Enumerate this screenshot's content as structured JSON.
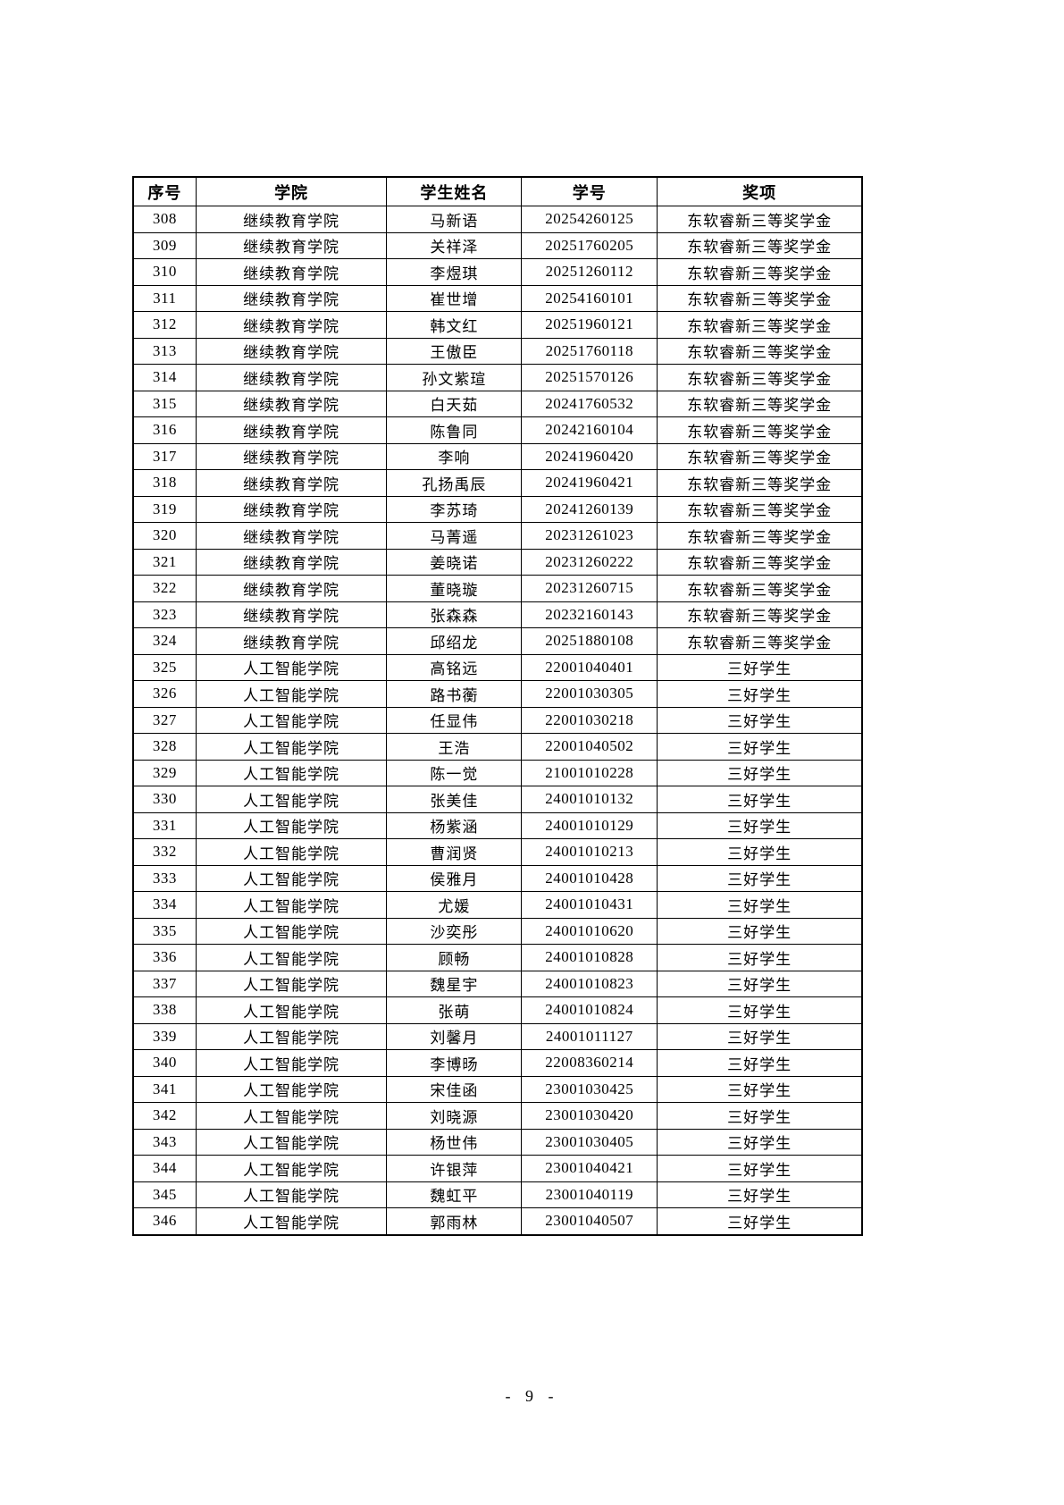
{
  "table": {
    "columns": [
      "序号",
      "学院",
      "学生姓名",
      "学号",
      "奖项"
    ],
    "rows": [
      {
        "no": "308",
        "college": "继续教育学院",
        "name": "马新语",
        "student_id": "20254260125",
        "award": "东软睿新三等奖学金"
      },
      {
        "no": "309",
        "college": "继续教育学院",
        "name": "关祥泽",
        "student_id": "20251760205",
        "award": "东软睿新三等奖学金"
      },
      {
        "no": "310",
        "college": "继续教育学院",
        "name": "李煜琪",
        "student_id": "20251260112",
        "award": "东软睿新三等奖学金"
      },
      {
        "no": "311",
        "college": "继续教育学院",
        "name": "崔世增",
        "student_id": "20254160101",
        "award": "东软睿新三等奖学金"
      },
      {
        "no": "312",
        "college": "继续教育学院",
        "name": "韩文红",
        "student_id": "20251960121",
        "award": "东软睿新三等奖学金"
      },
      {
        "no": "313",
        "college": "继续教育学院",
        "name": "王傲臣",
        "student_id": "20251760118",
        "award": "东软睿新三等奖学金"
      },
      {
        "no": "314",
        "college": "继续教育学院",
        "name": "孙文紫瑄",
        "student_id": "20251570126",
        "award": "东软睿新三等奖学金"
      },
      {
        "no": "315",
        "college": "继续教育学院",
        "name": "白天茹",
        "student_id": "20241760532",
        "award": "东软睿新三等奖学金"
      },
      {
        "no": "316",
        "college": "继续教育学院",
        "name": "陈鲁同",
        "student_id": "20242160104",
        "award": "东软睿新三等奖学金"
      },
      {
        "no": "317",
        "college": "继续教育学院",
        "name": "李响",
        "student_id": "20241960420",
        "award": "东软睿新三等奖学金"
      },
      {
        "no": "318",
        "college": "继续教育学院",
        "name": "孔扬禹辰",
        "student_id": "20241960421",
        "award": "东软睿新三等奖学金"
      },
      {
        "no": "319",
        "college": "继续教育学院",
        "name": "李苏琦",
        "student_id": "20241260139",
        "award": "东软睿新三等奖学金"
      },
      {
        "no": "320",
        "college": "继续教育学院",
        "name": "马菁遥",
        "student_id": "20231261023",
        "award": "东软睿新三等奖学金"
      },
      {
        "no": "321",
        "college": "继续教育学院",
        "name": "姜晓诺",
        "student_id": "20231260222",
        "award": "东软睿新三等奖学金"
      },
      {
        "no": "322",
        "college": "继续教育学院",
        "name": "董晓璇",
        "student_id": "20231260715",
        "award": "东软睿新三等奖学金"
      },
      {
        "no": "323",
        "college": "继续教育学院",
        "name": "张森森",
        "student_id": "20232160143",
        "award": "东软睿新三等奖学金"
      },
      {
        "no": "324",
        "college": "继续教育学院",
        "name": "邱绍龙",
        "student_id": "20251880108",
        "award": "东软睿新三等奖学金"
      },
      {
        "no": "325",
        "college": "人工智能学院",
        "name": "高铭远",
        "student_id": "22001040401",
        "award": "三好学生"
      },
      {
        "no": "326",
        "college": "人工智能学院",
        "name": "路书蘅",
        "student_id": "22001030305",
        "award": "三好学生"
      },
      {
        "no": "327",
        "college": "人工智能学院",
        "name": "任显伟",
        "student_id": "22001030218",
        "award": "三好学生"
      },
      {
        "no": "328",
        "college": "人工智能学院",
        "name": "王浩",
        "student_id": "22001040502",
        "award": "三好学生"
      },
      {
        "no": "329",
        "college": "人工智能学院",
        "name": "陈一觉",
        "student_id": "21001010228",
        "award": "三好学生"
      },
      {
        "no": "330",
        "college": "人工智能学院",
        "name": "张美佳",
        "student_id": "24001010132",
        "award": "三好学生"
      },
      {
        "no": "331",
        "college": "人工智能学院",
        "name": "杨紫涵",
        "student_id": "24001010129",
        "award": "三好学生"
      },
      {
        "no": "332",
        "college": "人工智能学院",
        "name": "曹润贤",
        "student_id": "24001010213",
        "award": "三好学生"
      },
      {
        "no": "333",
        "college": "人工智能学院",
        "name": "侯雅月",
        "student_id": "24001010428",
        "award": "三好学生"
      },
      {
        "no": "334",
        "college": "人工智能学院",
        "name": "尤媛",
        "student_id": "24001010431",
        "award": "三好学生"
      },
      {
        "no": "335",
        "college": "人工智能学院",
        "name": "沙奕彤",
        "student_id": "24001010620",
        "award": "三好学生"
      },
      {
        "no": "336",
        "college": "人工智能学院",
        "name": "顾畅",
        "student_id": "24001010828",
        "award": "三好学生"
      },
      {
        "no": "337",
        "college": "人工智能学院",
        "name": "魏星宇",
        "student_id": "24001010823",
        "award": "三好学生"
      },
      {
        "no": "338",
        "college": "人工智能学院",
        "name": "张萌",
        "student_id": "24001010824",
        "award": "三好学生"
      },
      {
        "no": "339",
        "college": "人工智能学院",
        "name": "刘馨月",
        "student_id": "24001011127",
        "award": "三好学生"
      },
      {
        "no": "340",
        "college": "人工智能学院",
        "name": "李博旸",
        "student_id": "22008360214",
        "award": "三好学生"
      },
      {
        "no": "341",
        "college": "人工智能学院",
        "name": "宋佳函",
        "student_id": "23001030425",
        "award": "三好学生"
      },
      {
        "no": "342",
        "college": "人工智能学院",
        "name": "刘晓源",
        "student_id": "23001030420",
        "award": "三好学生"
      },
      {
        "no": "343",
        "college": "人工智能学院",
        "name": "杨世伟",
        "student_id": "23001030405",
        "award": "三好学生"
      },
      {
        "no": "344",
        "college": "人工智能学院",
        "name": "许银萍",
        "student_id": "23001040421",
        "award": "三好学生"
      },
      {
        "no": "345",
        "college": "人工智能学院",
        "name": "魏虹平",
        "student_id": "23001040119",
        "award": "三好学生"
      },
      {
        "no": "346",
        "college": "人工智能学院",
        "name": "郭雨林",
        "student_id": "23001040507",
        "award": "三好学生"
      }
    ]
  },
  "footer": {
    "page_number": "- 9 -"
  }
}
